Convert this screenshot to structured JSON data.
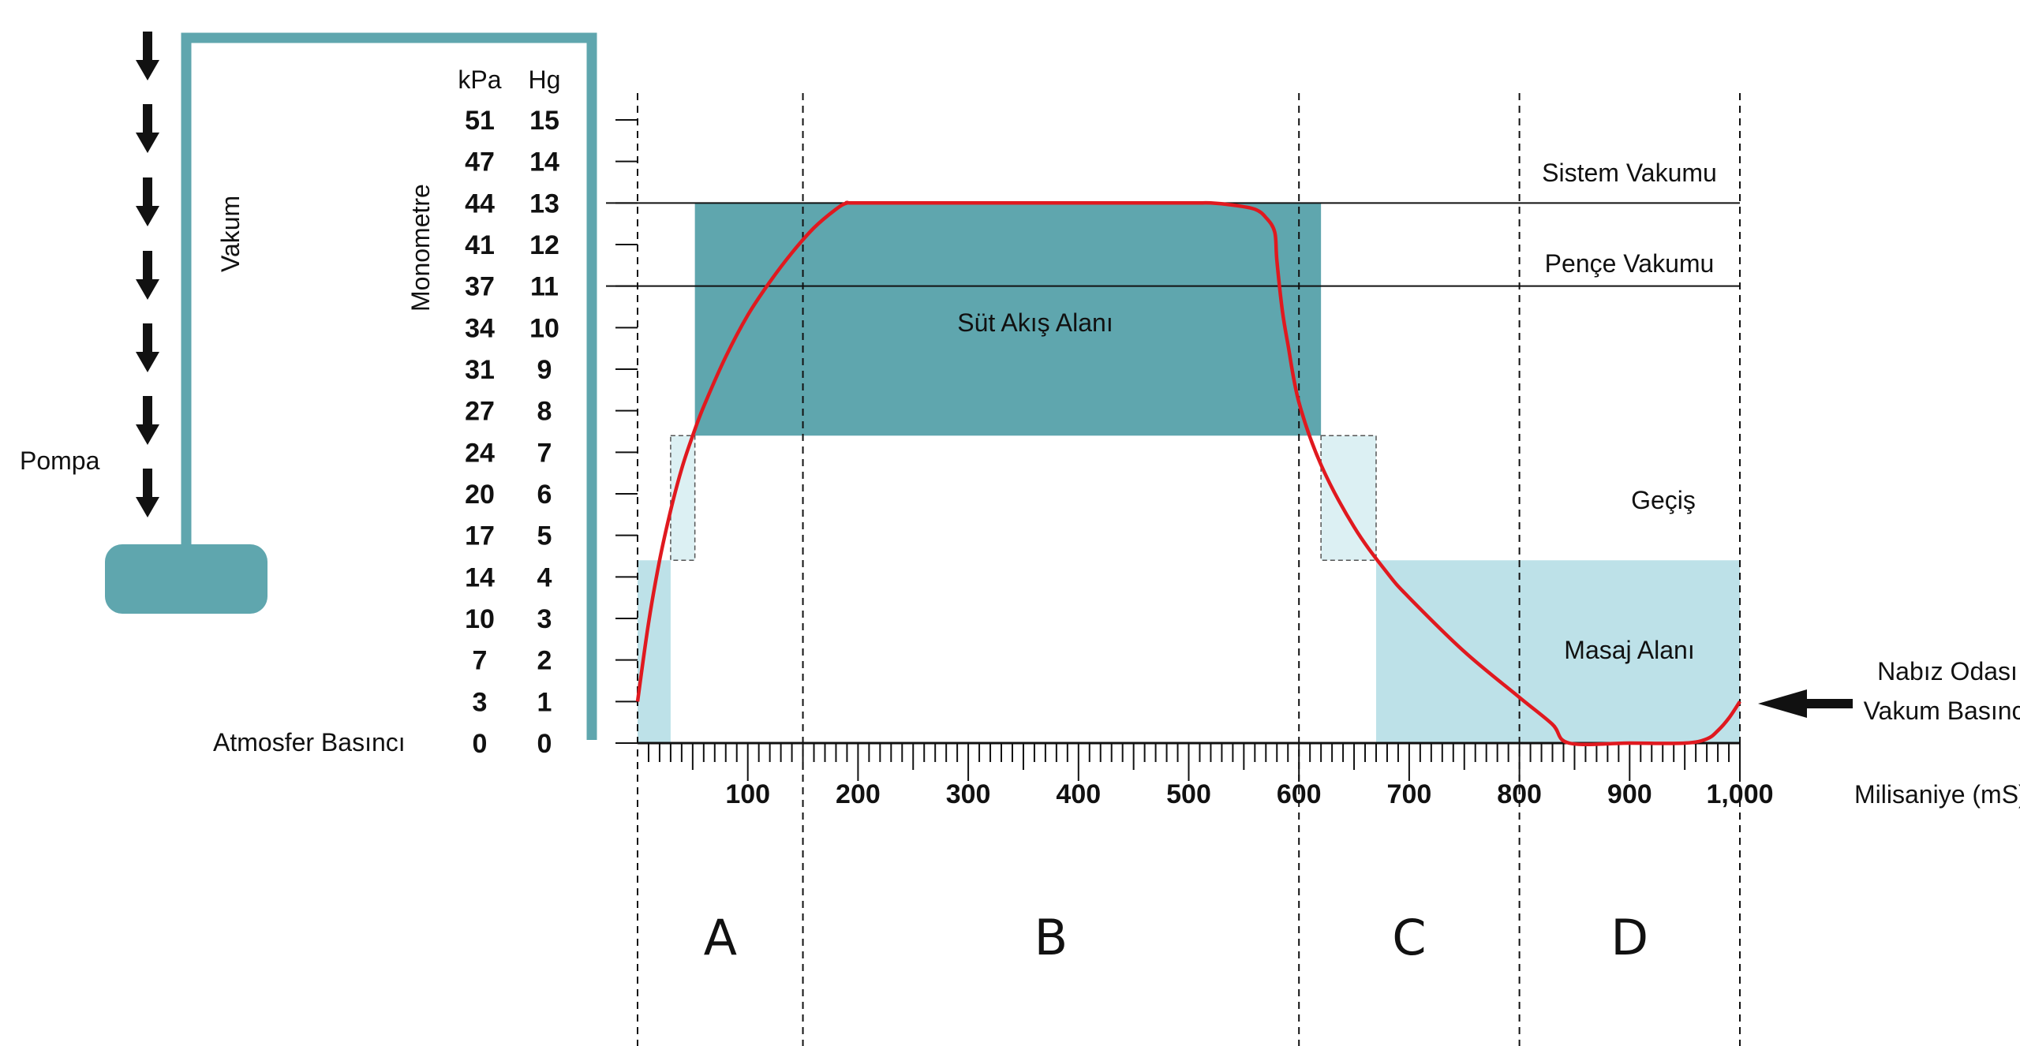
{
  "chart_data": {
    "type": "line",
    "title": "",
    "xlabel": "Milisaniye (mS)",
    "ylabel": "Monometre",
    "units": {
      "kpa": "kPa",
      "hg": "Hg"
    },
    "xlim": [
      0,
      1000
    ],
    "ylim": [
      0,
      15
    ],
    "x_ticks": [
      "100",
      "200",
      "300",
      "400",
      "500",
      "600",
      "700",
      "800",
      "900",
      "1,000"
    ],
    "y_ticks_kpa": [
      "0",
      "3",
      "7",
      "10",
      "14",
      "17",
      "20",
      "24",
      "27",
      "31",
      "34",
      "37",
      "41",
      "44",
      "47",
      "51"
    ],
    "y_ticks_hg": [
      "0",
      "1",
      "2",
      "3",
      "4",
      "5",
      "6",
      "7",
      "8",
      "9",
      "10",
      "11",
      "12",
      "13",
      "14",
      "15"
    ],
    "series": [
      {
        "color": "#e0191f",
        "x": [
          0,
          10,
          20,
          30,
          40,
          50,
          60,
          80,
          100,
          120,
          140,
          160,
          180,
          190,
          200,
          300,
          400,
          500,
          520,
          540,
          560,
          570,
          578,
          580,
          585,
          590,
          600,
          620,
          650,
          680,
          700,
          750,
          800,
          830,
          845,
          900,
          950,
          970,
          980,
          990,
          1000
        ],
        "y": [
          1,
          2.9,
          4.4,
          5.6,
          6.6,
          7.4,
          8.1,
          9.3,
          10.3,
          11.1,
          11.8,
          12.4,
          12.85,
          13,
          13,
          13,
          13,
          13,
          13,
          12.95,
          12.85,
          12.65,
          12.3,
          11.6,
          10.4,
          9.6,
          8.2,
          6.7,
          5.2,
          4.1,
          3.5,
          2.2,
          1.1,
          0.45,
          0,
          0,
          0,
          0.1,
          0.3,
          0.6,
          1
        ]
      }
    ],
    "reference_lines": [
      {
        "label": "Sistem Vakumu",
        "y": 13
      },
      {
        "label": "Pençe Vakumu",
        "y": 11
      }
    ],
    "regions": [
      {
        "label": "Süt Akış Alanı",
        "x0": 52,
        "x1": 620,
        "y0": 7.4,
        "y1": 13,
        "color": "#5fa6ae"
      },
      {
        "label": "Masaj Alanı",
        "x0": 670,
        "x1": 1000,
        "y0": 0,
        "y1": 4.4,
        "color": "#bde1e8"
      },
      {
        "label": "",
        "x0": 0,
        "x1": 30,
        "y0": 0,
        "y1": 4.4,
        "color": "#bde1e8"
      },
      {
        "label": "Geçiş",
        "x0": 30,
        "x1": 52,
        "y0": 4.4,
        "y1": 7.4,
        "color": "#dcf0f3",
        "dashed": true
      },
      {
        "label": "",
        "x0": 620,
        "x1": 670,
        "y0": 4.4,
        "y1": 7.4,
        "color": "#dcf0f3",
        "dashed": true
      }
    ],
    "phases": [
      {
        "label": "A",
        "x0": 0,
        "x1": 150
      },
      {
        "label": "B",
        "x0": 150,
        "x1": 600
      },
      {
        "label": "C",
        "x0": 600,
        "x1": 800
      },
      {
        "label": "D",
        "x0": 800,
        "x1": 1000
      }
    ],
    "grid": false,
    "legend": "none"
  },
  "labels": {
    "pompa": "Pompa",
    "vakum": "Vakum",
    "monometre": "Monometre",
    "atmosfer": "Atmosfer Basıncı",
    "nabiz_line1": "Nabız Odası",
    "nabiz_line2": "Vakum Basıncı",
    "sistem": "Sistem Vakumu",
    "pence": "Pençe Vakumu",
    "gecis": "Geçiş",
    "sut": "Süt Akış Alanı",
    "masaj": "Masaj Alanı"
  },
  "colors": {
    "teal": "#5fa6ae",
    "light_blue": "#bde1e8",
    "pale_blue": "#dcf0f3",
    "red_curve": "#e0191f"
  },
  "icons": [
    "down-arrow-icon",
    "left-arrow-icon",
    "pump-body-icon"
  ]
}
